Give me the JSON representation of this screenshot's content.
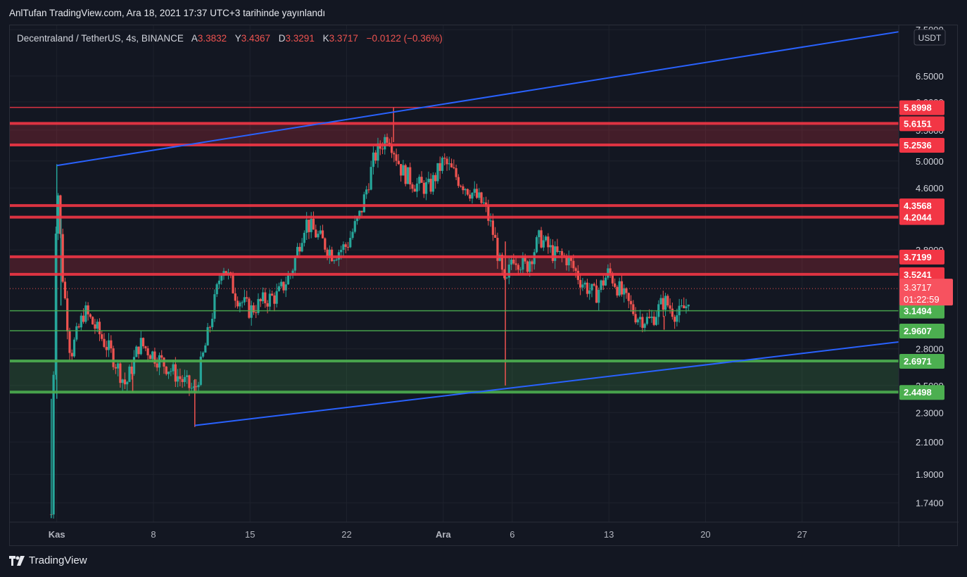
{
  "header": {
    "publication": "AnlTufan TradingView.com, Ara 18, 2021 17:37 UTC+3 tarihinde yayınlandı"
  },
  "symbol": {
    "name": "Decentraland / TetherUS, 4s, BINANCE",
    "open_label": "A",
    "open": "3.3832",
    "high_label": "Y",
    "high": "3.4367",
    "low_label": "D",
    "low": "3.3291",
    "close_label": "K",
    "close": "3.3717",
    "change": "−0.0122 (−0.36%)"
  },
  "footer": {
    "brand": "TradingView"
  },
  "colors": {
    "background": "#131722",
    "up_candle": "#26a69a",
    "down_candle": "#ef5350",
    "resistance": "#f23645",
    "support": "#4caf50",
    "trendline": "#2962ff"
  },
  "chart_data": {
    "type": "candlestick",
    "title": "Decentraland / TetherUS, 4s, BINANCE",
    "currency": "USDT",
    "y_scale": "log",
    "ylim": [
      1.64,
      7.6
    ],
    "y_ticks": [
      "7.5000",
      "6.5000",
      "6.0000",
      "5.5000",
      "5.0000",
      "4.6000",
      "3.8000",
      "2.8000",
      "2.5000",
      "2.3000",
      "2.1000",
      "1.9000",
      "1.7400"
    ],
    "x_ticks": [
      "Kas",
      "8",
      "15",
      "22",
      "Ara",
      "6",
      "13",
      "20",
      "27"
    ],
    "x_tick_days": [
      1,
      8,
      15,
      22,
      29,
      34,
      41,
      48,
      55
    ],
    "x_range_days": [
      -2.4,
      62
    ],
    "grid": true,
    "last_price": "3.3717",
    "countdown": "01:22:59",
    "price_path": [
      {
        "day": 0.6,
        "price": 1.68
      },
      {
        "day": 1.0,
        "price": 4.9
      },
      {
        "day": 1.4,
        "price": 3.55
      },
      {
        "day": 2.0,
        "price": 2.75
      },
      {
        "day": 3.0,
        "price": 3.15
      },
      {
        "day": 4.0,
        "price": 2.95
      },
      {
        "day": 5.0,
        "price": 2.75
      },
      {
        "day": 6.0,
        "price": 2.5
      },
      {
        "day": 7.0,
        "price": 2.85
      },
      {
        "day": 8.0,
        "price": 2.75
      },
      {
        "day": 9.0,
        "price": 2.65
      },
      {
        "day": 10.0,
        "price": 2.55
      },
      {
        "day": 11.0,
        "price": 2.45
      },
      {
        "day": 12.0,
        "price": 2.95
      },
      {
        "day": 13.0,
        "price": 3.65
      },
      {
        "day": 14.0,
        "price": 3.3
      },
      {
        "day": 15.0,
        "price": 3.15
      },
      {
        "day": 16.0,
        "price": 3.25
      },
      {
        "day": 17.0,
        "price": 3.3
      },
      {
        "day": 18.0,
        "price": 3.55
      },
      {
        "day": 19.0,
        "price": 4.15
      },
      {
        "day": 20.0,
        "price": 3.95
      },
      {
        "day": 21.0,
        "price": 3.75
      },
      {
        "day": 22.0,
        "price": 3.85
      },
      {
        "day": 23.0,
        "price": 4.25
      },
      {
        "day": 24.0,
        "price": 5.05
      },
      {
        "day": 25.0,
        "price": 5.45
      },
      {
        "day": 26.0,
        "price": 4.85
      },
      {
        "day": 27.0,
        "price": 4.65
      },
      {
        "day": 28.0,
        "price": 4.6
      },
      {
        "day": 29.0,
        "price": 5.0
      },
      {
        "day": 30.0,
        "price": 4.75
      },
      {
        "day": 31.0,
        "price": 4.55
      },
      {
        "day": 32.0,
        "price": 4.35
      },
      {
        "day": 32.7,
        "price": 3.95
      },
      {
        "day": 33.5,
        "price": 3.35
      },
      {
        "day": 34.0,
        "price": 3.75
      },
      {
        "day": 35.0,
        "price": 3.6
      },
      {
        "day": 36.0,
        "price": 3.95
      },
      {
        "day": 37.0,
        "price": 3.75
      },
      {
        "day": 38.0,
        "price": 3.7
      },
      {
        "day": 39.0,
        "price": 3.45
      },
      {
        "day": 40.0,
        "price": 3.3
      },
      {
        "day": 41.0,
        "price": 3.55
      },
      {
        "day": 42.0,
        "price": 3.3
      },
      {
        "day": 43.0,
        "price": 3.1
      },
      {
        "day": 44.0,
        "price": 3.05
      },
      {
        "day": 45.0,
        "price": 3.25
      },
      {
        "day": 46.0,
        "price": 3.1
      },
      {
        "day": 46.6,
        "price": 3.2
      },
      {
        "day": 46.9,
        "price": 3.37
      }
    ],
    "wicks": [
      {
        "day": 0.6,
        "low": 1.66,
        "high": 2.4
      },
      {
        "day": 1.0,
        "low": 2.4,
        "high": 4.95
      },
      {
        "day": 1.3,
        "low": 3.2,
        "high": 4.2
      },
      {
        "day": 6.5,
        "low": 2.45,
        "high": 2.6
      },
      {
        "day": 11.0,
        "low": 2.2,
        "high": 2.55
      },
      {
        "day": 25.4,
        "low": 5.3,
        "high": 5.9
      },
      {
        "day": 33.5,
        "low": 2.5,
        "high": 3.9
      },
      {
        "day": 45.0,
        "low": 2.97,
        "high": 3.1
      }
    ],
    "horizontal_levels": [
      {
        "label": "5.8998",
        "kind": "resistance"
      },
      {
        "label": "5.6151",
        "kind": "resistance"
      },
      {
        "label": "5.2536",
        "kind": "resistance"
      },
      {
        "label": "4.3568",
        "kind": "resistance"
      },
      {
        "label": "4.2044",
        "kind": "resistance"
      },
      {
        "label": "3.7199",
        "kind": "resistance"
      },
      {
        "label": "3.5241",
        "kind": "resistance"
      },
      {
        "label": "3.1494",
        "kind": "support"
      },
      {
        "label": "2.9607",
        "kind": "support"
      },
      {
        "label": "2.6971",
        "kind": "support"
      },
      {
        "label": "2.4498",
        "kind": "support"
      }
    ],
    "levels_numeric": [
      5.8998,
      5.6151,
      5.2536,
      4.3568,
      4.2044,
      3.7199,
      3.5241,
      3.1494,
      2.9607,
      2.6971,
      2.4498
    ],
    "zones": [
      {
        "from": 5.2536,
        "to": 5.6151,
        "kind": "resistance"
      },
      {
        "from": 3.5241,
        "to": 3.7199,
        "kind": "resistance"
      },
      {
        "from": 2.4498,
        "to": 2.6971,
        "kind": "support"
      }
    ],
    "trendlines": [
      {
        "from": {
          "day": 1.0,
          "price": 4.93
        },
        "to": {
          "day": 62.0,
          "price": 7.45
        }
      },
      {
        "from": {
          "day": 11.0,
          "price": 2.21
        },
        "to": {
          "day": 62.0,
          "price": 2.86
        }
      }
    ]
  }
}
